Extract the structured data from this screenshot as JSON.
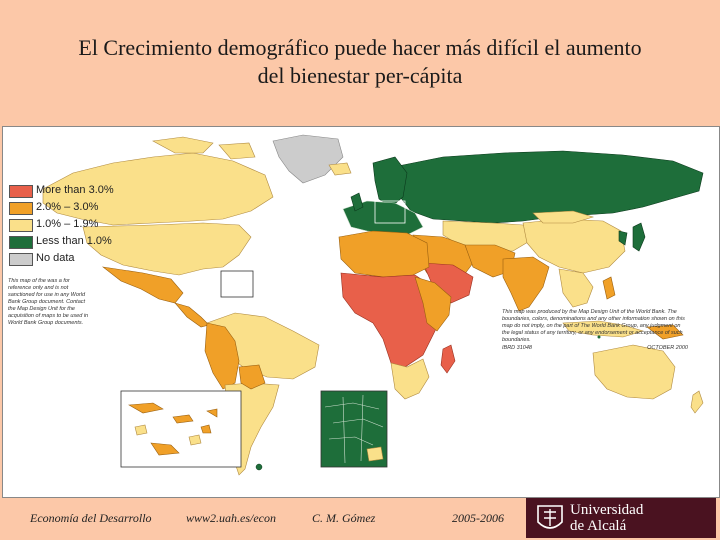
{
  "title": {
    "line1": "El Crecimiento demográfico puede hacer más difícil el aumento",
    "line2": "del bienestar per-cápita"
  },
  "legend": {
    "items": [
      {
        "label": "More than 3.0%",
        "color": "#e8604a"
      },
      {
        "label": "2.0% – 3.0%",
        "color": "#f0a028"
      },
      {
        "label": "1.0% – 1.9%",
        "color": "#fae08a"
      },
      {
        "label": "Less than 1.0%",
        "color": "#1e6e3a"
      },
      {
        "label": "No data",
        "color": "#cccccc"
      }
    ]
  },
  "colors": {
    "background": "#fcc8a8",
    "ocean": "#ffffff",
    "logo_bg": "#4a1220"
  },
  "notes": {
    "left": "This map of the was a for reference only and is not sanctioned for use in any World Bank Group document. Contact the Map Design Unit for the acquisition of maps to be used in World Bank Group documents.",
    "right": "This map was produced by the Map Design Unit of the World Bank. The boundaries, colors, denominations and any other information shown on this map do not imply, on the part of The World Bank Group, any judgment on the legal status of any territory, or any endorsement or acceptance of such boundaries.",
    "code": "IBRD 31048",
    "date": "OCTOBER 2000"
  },
  "footer": {
    "course": "Economía del Desarrollo",
    "url": "www2.uah.es/econ",
    "author": "C. M. Gómez",
    "years": "2005-2006"
  },
  "logo": {
    "line1": "Universidad",
    "line2": "de Alcalá",
    "icon": "university-crest-icon"
  }
}
